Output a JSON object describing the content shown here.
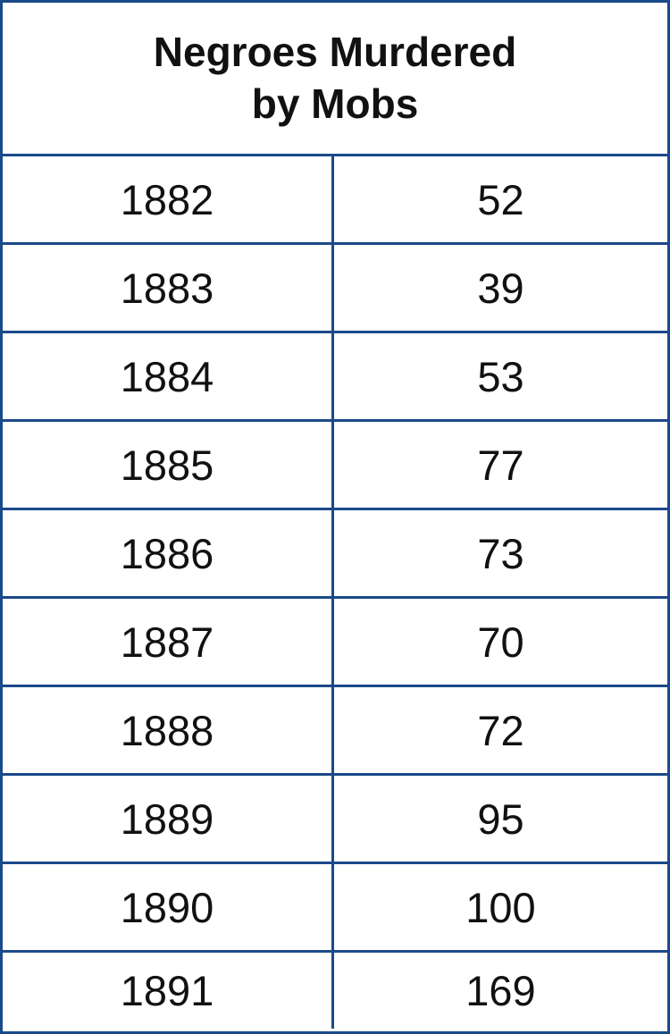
{
  "table": {
    "title": "Negroes Murdered\nby Mobs",
    "rows": [
      {
        "year": "1882",
        "count": "52"
      },
      {
        "year": "1883",
        "count": "39"
      },
      {
        "year": "1884",
        "count": "53"
      },
      {
        "year": "1885",
        "count": "77"
      },
      {
        "year": "1886",
        "count": "73"
      },
      {
        "year": "1887",
        "count": "70"
      },
      {
        "year": "1888",
        "count": "72"
      },
      {
        "year": "1889",
        "count": "95"
      },
      {
        "year": "1890",
        "count": "100"
      },
      {
        "year": "1891",
        "count": "169"
      }
    ]
  },
  "colors": {
    "border": "#1b4a8a",
    "text": "#111111",
    "background": "#ffffff"
  }
}
